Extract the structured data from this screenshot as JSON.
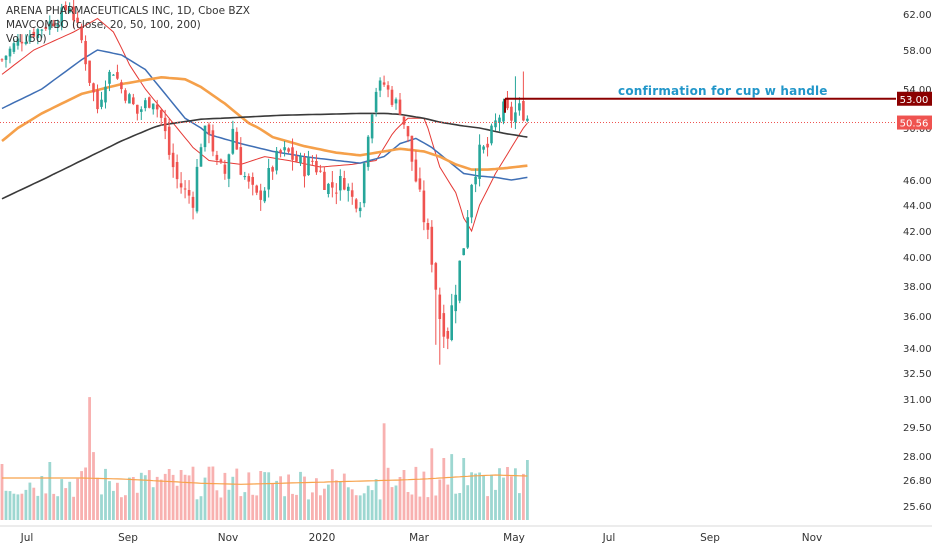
{
  "legend": {
    "symbol_line": "ARENA PHARMACEUTICALS INC, 1D, Cboe BZX",
    "ma_line": "MAVCOMBO (close, 20, 50, 100, 200)",
    "vol_line": "Vol (50)"
  },
  "annotation": "confirmation for cup w handle",
  "colors": {
    "up": "#26a69a",
    "down": "#ef5350",
    "ma20": "#e53935",
    "ma50": "#3f6fb5",
    "ma100": "#f5a04a",
    "ma200": "#3a3a3a",
    "resistance": "#8b0000",
    "last_price": "#ef5350"
  },
  "chart_data": {
    "type": "candlestick",
    "title": "ARENA PHARMACEUTICALS INC, 1D, Cboe BZX",
    "y_ticks": [
      "62.00",
      "58.00",
      "54.00",
      "50.00",
      "46.00",
      "44.00",
      "42.00",
      "40.00",
      "38.00",
      "36.00",
      "34.00",
      "32.50",
      "31.00",
      "29.50",
      "28.00",
      "26.80",
      "25.60"
    ],
    "x_ticks": [
      "Jul",
      "Sep",
      "Nov",
      "2020",
      "Mar",
      "May",
      "Jul",
      "Sep",
      "Nov"
    ],
    "resistance_level": "53.00",
    "last_price": "50.56",
    "price_range": [
      32.8,
      63.5
    ],
    "moving_averages": [
      {
        "name": "MA 20",
        "points": [
          [
            0,
            55.5
          ],
          [
            8,
            58
          ],
          [
            18,
            60
          ],
          [
            24,
            61.5
          ],
          [
            28,
            60
          ],
          [
            32,
            56.5
          ],
          [
            36,
            54
          ],
          [
            40,
            52
          ],
          [
            44,
            50
          ],
          [
            48,
            48.5
          ],
          [
            52,
            47.5
          ],
          [
            60,
            47.2
          ],
          [
            66,
            47.8
          ],
          [
            72,
            47.5
          ],
          [
            80,
            47
          ],
          [
            88,
            47.2
          ],
          [
            94,
            47.5
          ],
          [
            98,
            49.5
          ],
          [
            102,
            51
          ],
          [
            106,
            51
          ],
          [
            108,
            49
          ],
          [
            110,
            47
          ],
          [
            114,
            45
          ],
          [
            116,
            43
          ],
          [
            118,
            42
          ],
          [
            120,
            44
          ],
          [
            124,
            46.5
          ],
          [
            128,
            48.5
          ],
          [
            132,
            50.5
          ]
        ]
      },
      {
        "name": "MA 50",
        "points": [
          [
            0,
            52
          ],
          [
            10,
            54
          ],
          [
            20,
            57
          ],
          [
            24,
            58
          ],
          [
            30,
            57.5
          ],
          [
            36,
            56
          ],
          [
            40,
            54
          ],
          [
            46,
            51
          ],
          [
            52,
            49.5
          ],
          [
            60,
            48.8
          ],
          [
            68,
            48.2
          ],
          [
            76,
            47.8
          ],
          [
            84,
            47.5
          ],
          [
            90,
            47.3
          ],
          [
            96,
            47.8
          ],
          [
            100,
            48.8
          ],
          [
            104,
            49.2
          ],
          [
            108,
            48.5
          ],
          [
            112,
            47.5
          ],
          [
            116,
            46.5
          ],
          [
            120,
            46.3
          ],
          [
            124,
            46.2
          ],
          [
            128,
            46
          ],
          [
            132,
            46.2
          ]
        ]
      },
      {
        "name": "MA 100",
        "points": [
          [
            0,
            49
          ],
          [
            10,
            51.5
          ],
          [
            20,
            53.5
          ],
          [
            30,
            54.5
          ],
          [
            40,
            55.2
          ],
          [
            46,
            55
          ],
          [
            50,
            54.2
          ],
          [
            56,
            52.5
          ],
          [
            62,
            50.5
          ],
          [
            68,
            49.3
          ],
          [
            76,
            48.6
          ],
          [
            84,
            48.1
          ],
          [
            90,
            47.9
          ],
          [
            96,
            48.2
          ],
          [
            100,
            48.4
          ],
          [
            106,
            48.2
          ],
          [
            110,
            47.8
          ],
          [
            114,
            47.2
          ],
          [
            118,
            46.8
          ],
          [
            122,
            46.8
          ],
          [
            126,
            46.9
          ],
          [
            132,
            47.1
          ]
        ]
      },
      {
        "name": "MA 200",
        "points": [
          [
            0,
            44.5
          ],
          [
            10,
            46
          ],
          [
            20,
            47.5
          ],
          [
            30,
            49
          ],
          [
            40,
            50.3
          ],
          [
            50,
            50.9
          ],
          [
            60,
            51.1
          ],
          [
            70,
            51.3
          ],
          [
            80,
            51.4
          ],
          [
            90,
            51.5
          ],
          [
            96,
            51.5
          ],
          [
            100,
            51.4
          ],
          [
            106,
            51
          ],
          [
            110,
            50.6
          ],
          [
            116,
            50.2
          ],
          [
            120,
            50
          ],
          [
            126,
            49.6
          ],
          [
            132,
            49.3
          ]
        ]
      }
    ],
    "volume_ma": [
      [
        0,
        26.9
      ],
      [
        20,
        26.9
      ],
      [
        30,
        26.85
      ],
      [
        40,
        26.75
      ],
      [
        50,
        26.65
      ],
      [
        60,
        26.6
      ],
      [
        70,
        26.65
      ],
      [
        80,
        26.7
      ],
      [
        90,
        26.75
      ],
      [
        100,
        26.8
      ],
      [
        106,
        26.85
      ],
      [
        110,
        26.9
      ],
      [
        118,
        27.0
      ],
      [
        124,
        27.05
      ],
      [
        132,
        27.0
      ]
    ]
  }
}
